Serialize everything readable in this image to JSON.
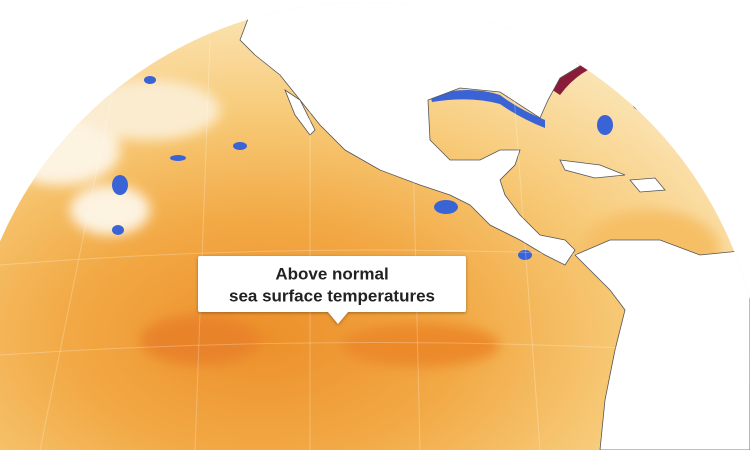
{
  "callout": {
    "lines": [
      "Above normal",
      "sea surface temperatures"
    ]
  }
}
